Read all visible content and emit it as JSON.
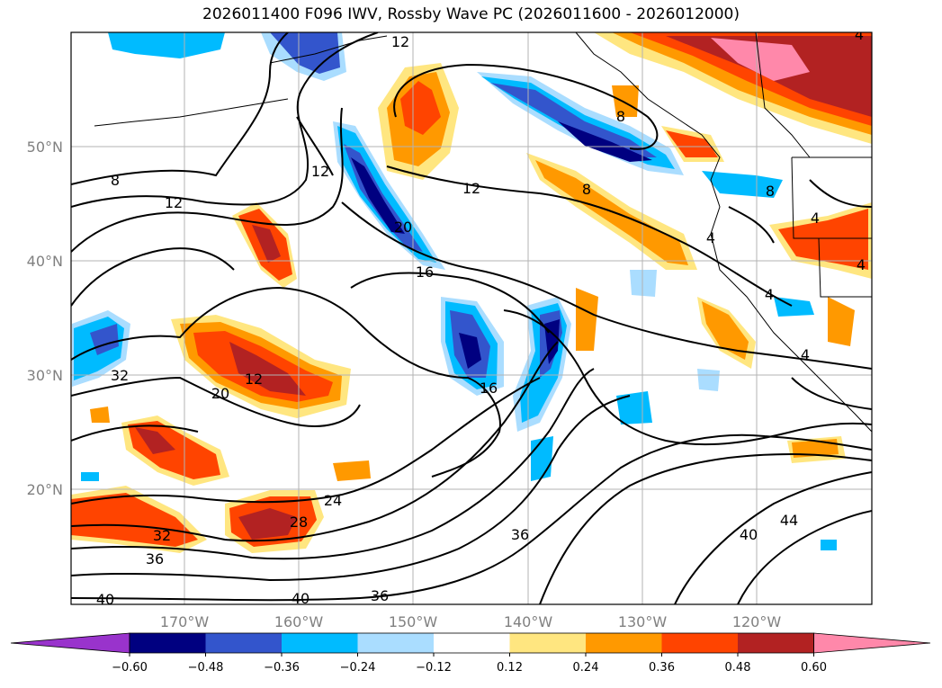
{
  "title": "2026011400 F096 IWV, Rossby Wave PC (2026011600 - 2026012000)",
  "map": {
    "lat_ticks": [
      "50°N",
      "40°N",
      "30°N",
      "20°N"
    ],
    "lon_ticks": [
      "170°W",
      "160°W",
      "150°W",
      "140°W",
      "130°W",
      "120°W"
    ],
    "contour_labels": [
      "12",
      "8",
      "12",
      "12",
      "12",
      "8",
      "8",
      "20",
      "16",
      "4",
      "4",
      "8",
      "4",
      "4",
      "4",
      "32",
      "12",
      "20",
      "16",
      "36",
      "24",
      "28",
      "32",
      "36",
      "40",
      "36",
      "40",
      "40",
      "44",
      "4"
    ]
  },
  "colorbar": {
    "tick_labels": [
      "−0.60",
      "−0.48",
      "−0.36",
      "−0.24",
      "−0.12",
      "0.12",
      "0.24",
      "0.36",
      "0.48",
      "0.60"
    ],
    "colors": [
      "#9933cc",
      "#000080",
      "#3355cc",
      "#00bbff",
      "#aaddff",
      "#ffffff",
      "#ffe680",
      "#ff9900",
      "#ff4400",
      "#b22222",
      "#ff88aa"
    ]
  }
}
